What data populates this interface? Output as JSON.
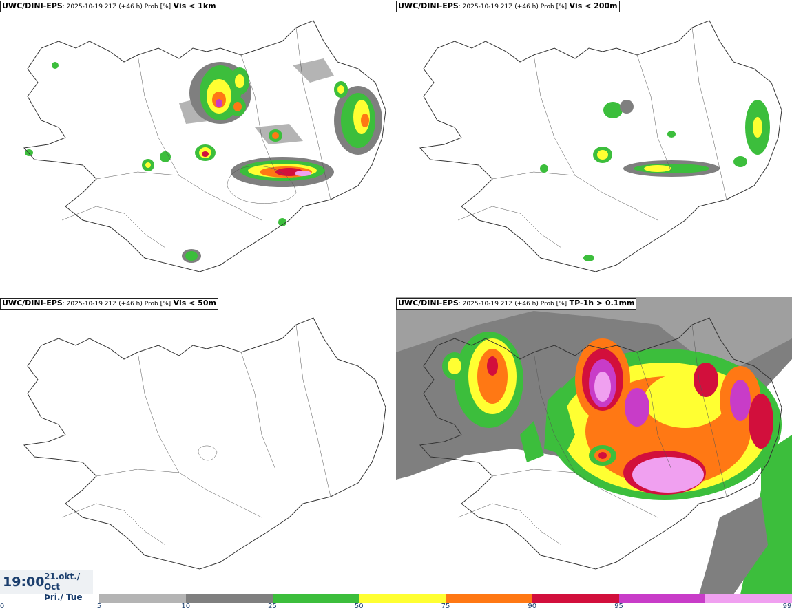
{
  "panels": [
    {
      "source": "UWC/DINI-EPS",
      "meta": ": 2025-10-19 21Z (+46 h) Prob [%]",
      "variable": "Vis < 1km"
    },
    {
      "source": "UWC/DINI-EPS",
      "meta": ": 2025-10-19 21Z (+46 h) Prob [%]",
      "variable": "Vis < 200m"
    },
    {
      "source": "UWC/DINI-EPS",
      "meta": ": 2025-10-19 21Z (+46 h) Prob [%]",
      "variable": "Vis < 50m"
    },
    {
      "source": "UWC/DINI-EPS",
      "meta": ": 2025-10-19 21Z (+46 h) Prob [%]",
      "variable": "TP-1h > 0.1mm"
    }
  ],
  "valid_time": {
    "time": "19:00",
    "date_line1": "21.okt./ Oct",
    "date_line2": "Þri./ Tue"
  },
  "legend": {
    "ticks": [
      "0",
      "5",
      "10",
      "25",
      "50",
      "75",
      "90",
      "95",
      "99"
    ],
    "colors": [
      "#b4b4b4",
      "#7f7f7f",
      "#3cbe3c",
      "#ffff32",
      "#ff7814",
      "#d20f3c",
      "#c83cc8",
      "#f0a0f0"
    ]
  }
}
